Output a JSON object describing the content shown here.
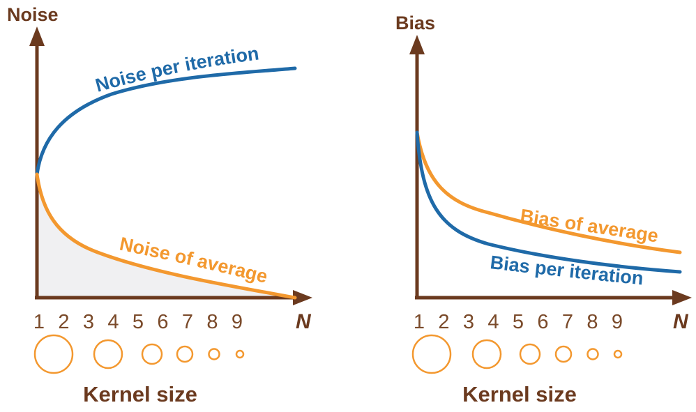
{
  "colors": {
    "axis": "#6b3a1f",
    "blue": "#1f6aa8",
    "orange": "#f3982f",
    "tick_text": "#7a4a2a",
    "shade": "#f0f0f2"
  },
  "panels": [
    {
      "y_axis_label": "Noise",
      "x_axis_label": "N",
      "ticks": [
        "1",
        "2",
        "3",
        "4",
        "5",
        "6",
        "7",
        "8",
        "9"
      ],
      "kernel_label": "Kernel size",
      "curves": [
        {
          "label": "Noise per iteration",
          "color": "blue"
        },
        {
          "label": "Noise of average",
          "color": "orange"
        }
      ]
    },
    {
      "y_axis_label": "Bias",
      "x_axis_label": "N",
      "ticks": [
        "1",
        "2",
        "3",
        "4",
        "5",
        "6",
        "7",
        "8",
        "9"
      ],
      "kernel_label": "Kernel size",
      "curves": [
        {
          "label": "Bias of average",
          "color": "orange"
        },
        {
          "label": "Bias per iteration",
          "color": "blue"
        }
      ]
    }
  ]
}
